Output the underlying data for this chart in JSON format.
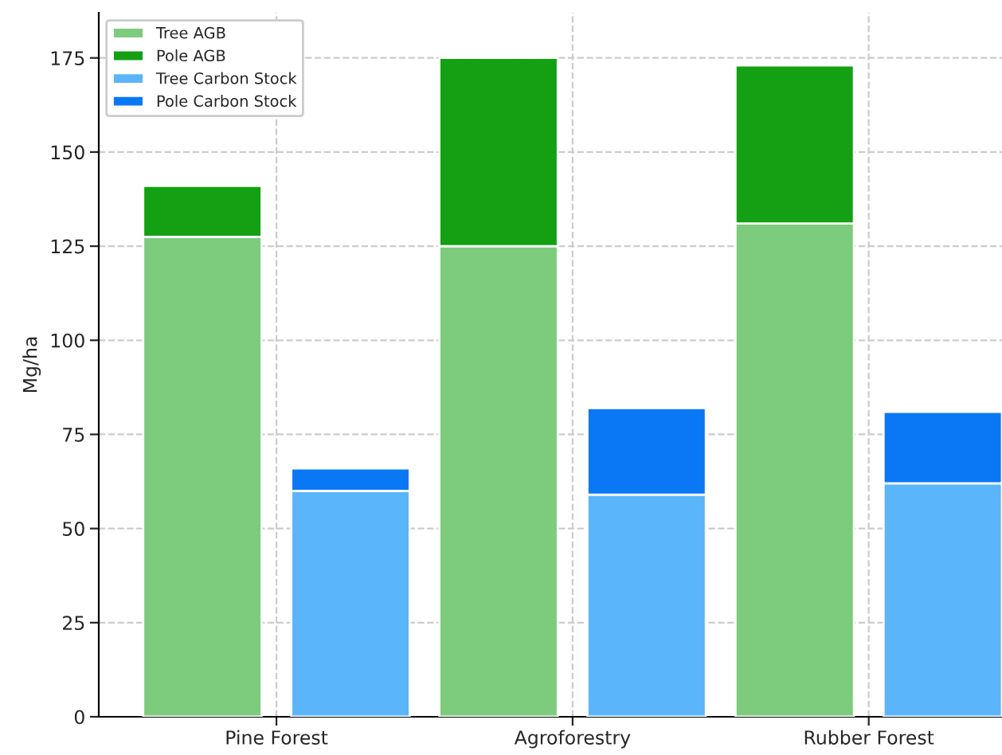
{
  "chart_data": {
    "type": "bar",
    "stacked": true,
    "ylabel": "Mg/ha",
    "categories": [
      null,
      null,
      null,
      null,
      null,
      null
    ],
    "annotations": [
      "Pine Forest",
      "Agroforestry",
      "Rubber Forest"
    ],
    "series": [
      {
        "name": "Tree AGB",
        "color": "#7dcb7d",
        "values": [
          127.5,
          null,
          125,
          null,
          131,
          null
        ]
      },
      {
        "name": "Pole AGB",
        "color": "#13a013",
        "values": [
          13.5,
          null,
          50,
          null,
          42,
          null
        ]
      },
      {
        "name": "Tree Carbon Stock",
        "color": "#5ab5fa",
        "values": [
          null,
          60,
          null,
          59,
          null,
          62
        ]
      },
      {
        "name": "Pole Carbon Stock",
        "color": "#0a78f5",
        "values": [
          null,
          6,
          null,
          23,
          null,
          19
        ]
      }
    ],
    "ylim": [
      0,
      187
    ],
    "yticks": [
      0,
      25,
      50,
      75,
      100,
      125,
      150,
      175
    ],
    "grid": true,
    "legend": "top left"
  }
}
